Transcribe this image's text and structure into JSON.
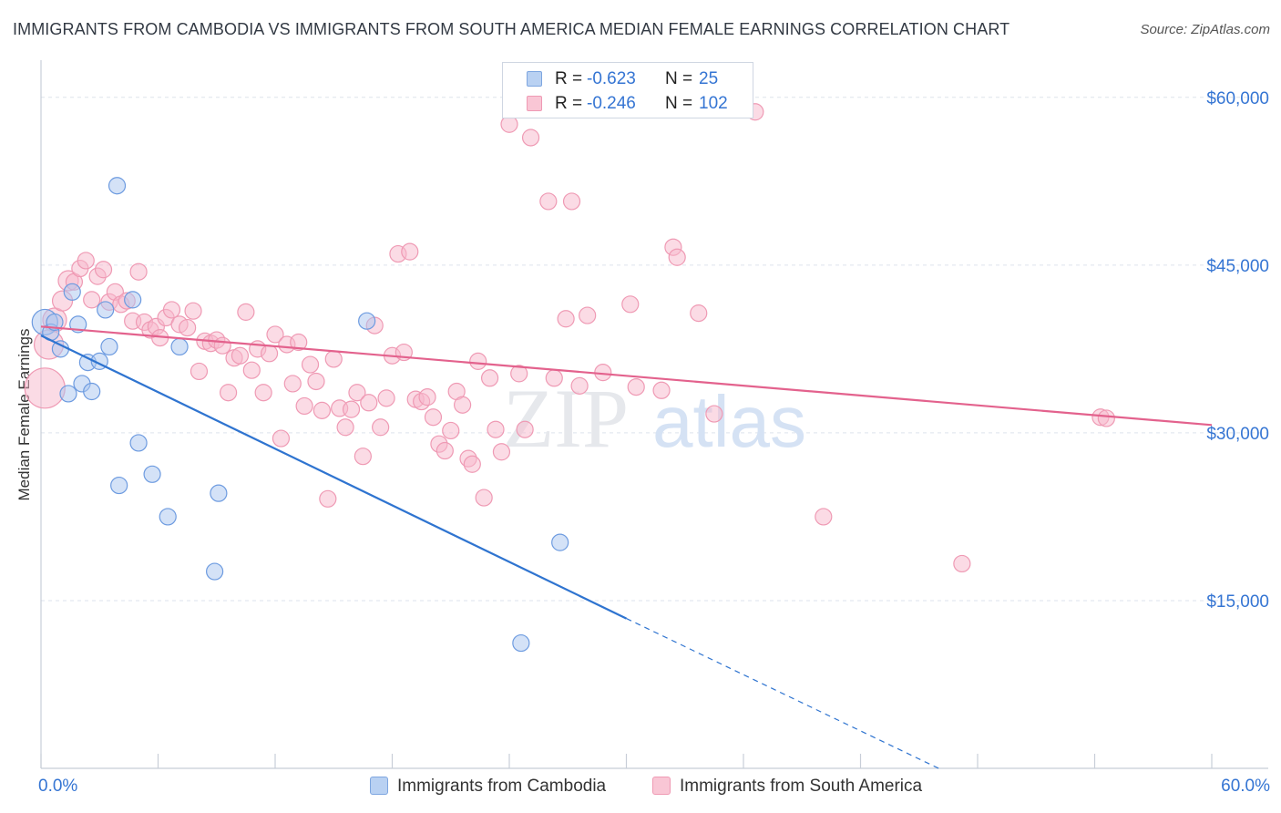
{
  "title": "IMMIGRANTS FROM CAMBODIA VS IMMIGRANTS FROM SOUTH AMERICA MEDIAN FEMALE EARNINGS CORRELATION CHART",
  "source": "Source: ZipAtlas.com",
  "watermark": {
    "zip": "ZIP",
    "atlas": "atlas"
  },
  "legend": {
    "rows": [
      {
        "r_label": "R =",
        "r_value": "-0.623",
        "n_label": "N =",
        "n_value": "25"
      },
      {
        "r_label": "R =",
        "r_value": "-0.246",
        "n_label": "N =",
        "n_value": "102"
      }
    ]
  },
  "bottom_legend": {
    "series1": "Immigrants from Cambodia",
    "series2": "Immigrants from South America"
  },
  "colors": {
    "cambodia_fill": "#a9c6ef",
    "cambodia_stroke": "#6d9be0",
    "cambodia_line": "#2f74d0",
    "southam_fill": "#f7b8cb",
    "southam_stroke": "#ef9ab4",
    "southam_line": "#e3628d",
    "axis_text": "#3575d3",
    "grid": "#dde3ec"
  },
  "chart_data": {
    "type": "scatter",
    "title": "IMMIGRANTS FROM CAMBODIA VS IMMIGRANTS FROM SOUTH AMERICA MEDIAN FEMALE EARNINGS CORRELATION CHART",
    "xlabel": "",
    "ylabel": "Median Female Earnings",
    "xlim": [
      0,
      60
    ],
    "ylim": [
      0,
      63000
    ],
    "x_tick_labels": [
      "0.0%",
      "60.0%"
    ],
    "y_ticks": [
      15000,
      30000,
      45000,
      60000
    ],
    "y_tick_labels": [
      "$15,000",
      "$30,000",
      "$45,000",
      "$60,000"
    ],
    "grid": true,
    "series": [
      {
        "name": "Immigrants from Cambodia",
        "R": -0.623,
        "N": 25,
        "trend": {
          "x0": 0.0,
          "y0": 38700,
          "x1": 30.0,
          "y1": 13400,
          "dash_x1": 46.0,
          "dash_y1": 0
        },
        "points": [
          [
            0.2,
            39900,
            14
          ],
          [
            0.5,
            39000,
            9
          ],
          [
            0.7,
            39900,
            9
          ],
          [
            1.0,
            37500,
            9
          ],
          [
            1.4,
            33500,
            9
          ],
          [
            1.6,
            42600,
            9
          ],
          [
            1.9,
            39700,
            9
          ],
          [
            2.1,
            34400,
            9
          ],
          [
            2.4,
            36300,
            9
          ],
          [
            2.6,
            33700,
            9
          ],
          [
            3.0,
            36400,
            9
          ],
          [
            3.3,
            41000,
            9
          ],
          [
            3.5,
            37700,
            9
          ],
          [
            3.9,
            52100,
            9
          ],
          [
            4.0,
            25300,
            9
          ],
          [
            4.7,
            41900,
            9
          ],
          [
            5.0,
            29100,
            9
          ],
          [
            5.7,
            26300,
            9
          ],
          [
            6.5,
            22500,
            9
          ],
          [
            7.1,
            37700,
            9
          ],
          [
            8.9,
            17600,
            9
          ],
          [
            9.1,
            24600,
            9
          ],
          [
            16.7,
            40000,
            9
          ],
          [
            24.6,
            11200,
            9
          ],
          [
            26.6,
            20200,
            9
          ]
        ]
      },
      {
        "name": "Immigrants from South America",
        "R": -0.246,
        "N": 102,
        "trend": {
          "x0": 0.0,
          "y0": 39500,
          "x1": 60.0,
          "y1": 30700
        },
        "points": [
          [
            0.2,
            34000,
            22
          ],
          [
            0.4,
            37900,
            16
          ],
          [
            0.7,
            40100,
            13
          ],
          [
            1.1,
            41800,
            11
          ],
          [
            1.4,
            43600,
            11
          ],
          [
            1.7,
            43500,
            9
          ],
          [
            2.0,
            44700,
            9
          ],
          [
            2.3,
            45400,
            9
          ],
          [
            2.6,
            41900,
            9
          ],
          [
            2.9,
            44000,
            9
          ],
          [
            3.2,
            44600,
            9
          ],
          [
            3.5,
            41700,
            9
          ],
          [
            3.8,
            42600,
            9
          ],
          [
            4.1,
            41500,
            9
          ],
          [
            4.4,
            41800,
            9
          ],
          [
            4.7,
            40000,
            9
          ],
          [
            5.0,
            44400,
            9
          ],
          [
            5.3,
            39900,
            9
          ],
          [
            5.6,
            39200,
            9
          ],
          [
            5.9,
            39500,
            9
          ],
          [
            6.1,
            38500,
            9
          ],
          [
            6.4,
            40300,
            9
          ],
          [
            6.7,
            41000,
            9
          ],
          [
            7.1,
            39700,
            9
          ],
          [
            7.5,
            39400,
            9
          ],
          [
            7.8,
            40900,
            9
          ],
          [
            8.1,
            35500,
            9
          ],
          [
            8.4,
            38200,
            9
          ],
          [
            8.7,
            38000,
            9
          ],
          [
            9.0,
            38300,
            9
          ],
          [
            9.3,
            37800,
            9
          ],
          [
            9.6,
            33600,
            9
          ],
          [
            9.9,
            36700,
            9
          ],
          [
            10.2,
            36900,
            9
          ],
          [
            10.5,
            40800,
            9
          ],
          [
            10.8,
            35600,
            9
          ],
          [
            11.1,
            37500,
            9
          ],
          [
            11.4,
            33600,
            9
          ],
          [
            11.7,
            37100,
            9
          ],
          [
            12.0,
            38800,
            9
          ],
          [
            12.3,
            29500,
            9
          ],
          [
            12.6,
            37900,
            9
          ],
          [
            12.9,
            34400,
            9
          ],
          [
            13.2,
            38100,
            9
          ],
          [
            13.5,
            32400,
            9
          ],
          [
            13.8,
            36100,
            9
          ],
          [
            14.1,
            34600,
            9
          ],
          [
            14.4,
            32000,
            9
          ],
          [
            14.7,
            24100,
            9
          ],
          [
            15.0,
            36600,
            9
          ],
          [
            15.3,
            32200,
            9
          ],
          [
            15.6,
            30500,
            9
          ],
          [
            15.9,
            32100,
            9
          ],
          [
            16.2,
            33600,
            9
          ],
          [
            16.5,
            27900,
            9
          ],
          [
            16.8,
            32700,
            9
          ],
          [
            17.1,
            39600,
            9
          ],
          [
            17.4,
            30500,
            9
          ],
          [
            17.7,
            33100,
            9
          ],
          [
            18.0,
            36900,
            9
          ],
          [
            18.3,
            46000,
            9
          ],
          [
            18.6,
            37200,
            9
          ],
          [
            18.9,
            46200,
            9
          ],
          [
            19.2,
            33000,
            9
          ],
          [
            19.5,
            32800,
            9
          ],
          [
            19.8,
            33200,
            9
          ],
          [
            20.1,
            31400,
            9
          ],
          [
            20.4,
            29000,
            9
          ],
          [
            20.7,
            28400,
            9
          ],
          [
            21.0,
            30200,
            9
          ],
          [
            21.3,
            33700,
            9
          ],
          [
            21.6,
            32500,
            9
          ],
          [
            21.9,
            27700,
            9
          ],
          [
            22.1,
            27200,
            9
          ],
          [
            22.4,
            36400,
            9
          ],
          [
            22.7,
            24200,
            9
          ],
          [
            23.0,
            34900,
            9
          ],
          [
            23.3,
            30300,
            9
          ],
          [
            23.6,
            28300,
            9
          ],
          [
            24.0,
            57600,
            9
          ],
          [
            24.5,
            35300,
            9
          ],
          [
            24.8,
            30300,
            9
          ],
          [
            25.1,
            56400,
            9
          ],
          [
            26.0,
            50700,
            9
          ],
          [
            26.3,
            34900,
            9
          ],
          [
            26.9,
            40200,
            9
          ],
          [
            27.2,
            50700,
            9
          ],
          [
            27.6,
            34200,
            9
          ],
          [
            28.0,
            40500,
            9
          ],
          [
            28.8,
            35400,
            9
          ],
          [
            30.2,
            41500,
            9
          ],
          [
            30.5,
            34100,
            9
          ],
          [
            31.8,
            33800,
            9
          ],
          [
            32.4,
            46600,
            9
          ],
          [
            32.6,
            45700,
            9
          ],
          [
            33.7,
            40700,
            9
          ],
          [
            34.5,
            31700,
            9
          ],
          [
            36.6,
            58700,
            9
          ],
          [
            40.1,
            22500,
            9
          ],
          [
            47.2,
            18300,
            9
          ],
          [
            54.3,
            31400,
            9
          ],
          [
            54.6,
            31300,
            9
          ]
        ]
      }
    ]
  }
}
